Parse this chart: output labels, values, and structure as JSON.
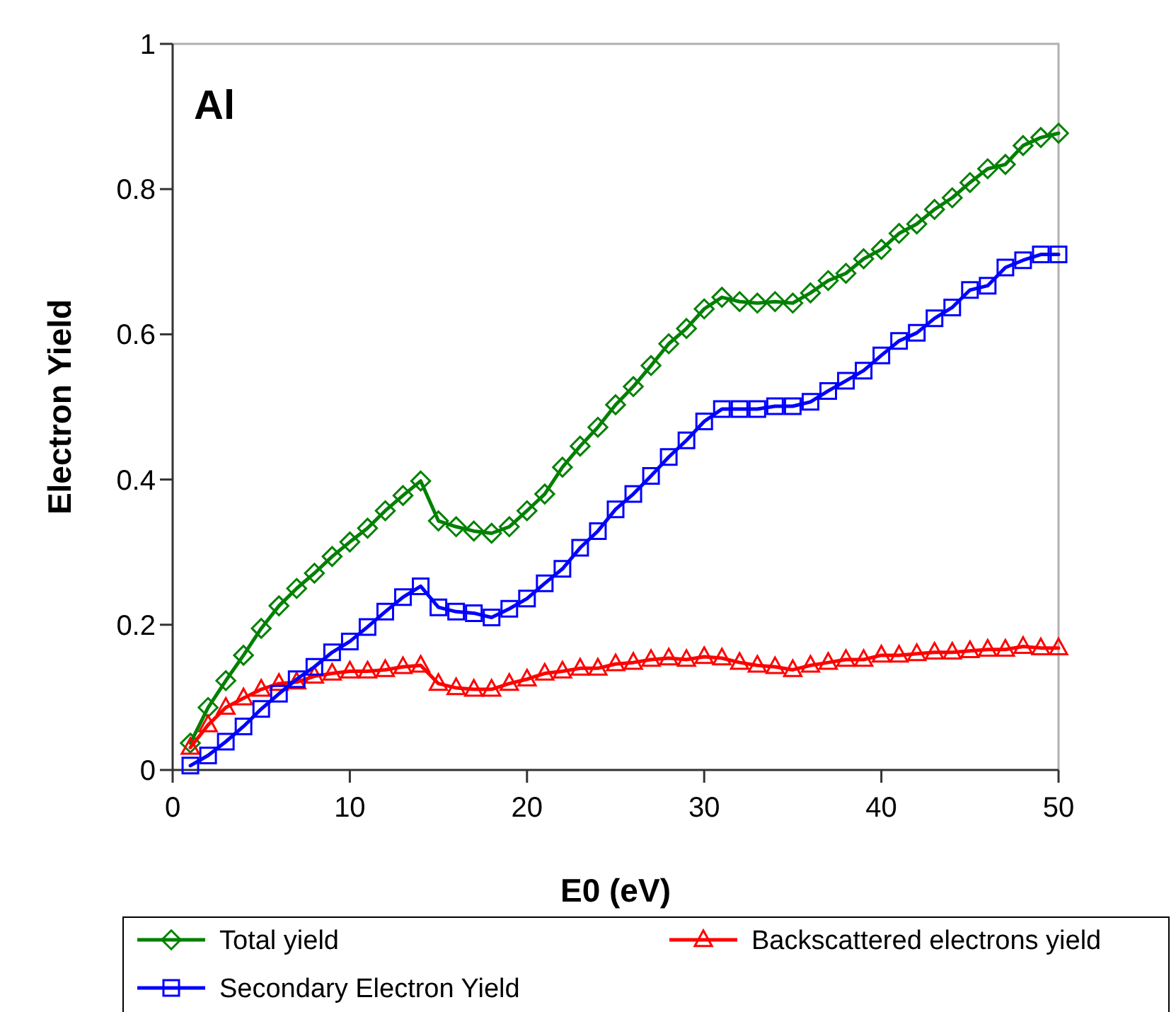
{
  "chart_data": {
    "type": "line",
    "xlabel": "E0 (eV)",
    "ylabel": "Electron Yield",
    "annotations": [
      "Al"
    ],
    "x": [
      1,
      2,
      3,
      4,
      5,
      6,
      7,
      8,
      9,
      10,
      11,
      12,
      13,
      14,
      15,
      16,
      17,
      18,
      19,
      20,
      21,
      22,
      23,
      24,
      25,
      26,
      27,
      28,
      29,
      30,
      31,
      32,
      33,
      34,
      35,
      36,
      37,
      38,
      39,
      40,
      41,
      42,
      43,
      44,
      45,
      46,
      47,
      48,
      49,
      50
    ],
    "xlim": [
      0,
      50
    ],
    "xticks": [
      0,
      10,
      20,
      30,
      40,
      50
    ],
    "ylim": [
      0,
      1
    ],
    "yticks": [
      0,
      0.2,
      0.4,
      0.6,
      0.8,
      1
    ],
    "grid": false,
    "legend": "bottom",
    "line_style": "solid",
    "series": [
      {
        "name": "Total yield",
        "color": "#008000",
        "marker": "diamond",
        "values": [
          0.037,
          0.086,
          0.123,
          0.158,
          0.195,
          0.226,
          0.25,
          0.271,
          0.294,
          0.314,
          0.333,
          0.357,
          0.378,
          0.398,
          0.343,
          0.335,
          0.329,
          0.326,
          0.335,
          0.357,
          0.38,
          0.417,
          0.446,
          0.472,
          0.503,
          0.528,
          0.557,
          0.587,
          0.608,
          0.635,
          0.651,
          0.645,
          0.643,
          0.645,
          0.643,
          0.657,
          0.674,
          0.684,
          0.704,
          0.717,
          0.739,
          0.752,
          0.772,
          0.788,
          0.809,
          0.828,
          0.834,
          0.86,
          0.871,
          0.877
        ]
      },
      {
        "name": "Backscattered electrons yield",
        "color": "#ff0000",
        "marker": "triangle",
        "values": [
          0.031,
          0.062,
          0.086,
          0.099,
          0.111,
          0.119,
          0.121,
          0.129,
          0.133,
          0.136,
          0.136,
          0.138,
          0.142,
          0.144,
          0.119,
          0.113,
          0.111,
          0.111,
          0.119,
          0.125,
          0.133,
          0.136,
          0.14,
          0.14,
          0.146,
          0.148,
          0.152,
          0.154,
          0.152,
          0.156,
          0.154,
          0.148,
          0.144,
          0.142,
          0.138,
          0.144,
          0.148,
          0.152,
          0.152,
          0.158,
          0.158,
          0.16,
          0.162,
          0.162,
          0.164,
          0.166,
          0.166,
          0.17,
          0.168,
          0.168
        ]
      },
      {
        "name": "Secondary Electron Yield",
        "color": "#0000ff",
        "marker": "square",
        "values": [
          0.006,
          0.02,
          0.039,
          0.06,
          0.084,
          0.105,
          0.125,
          0.142,
          0.162,
          0.177,
          0.197,
          0.218,
          0.238,
          0.253,
          0.224,
          0.218,
          0.216,
          0.21,
          0.222,
          0.236,
          0.257,
          0.277,
          0.306,
          0.329,
          0.359,
          0.38,
          0.405,
          0.431,
          0.454,
          0.48,
          0.497,
          0.497,
          0.497,
          0.501,
          0.501,
          0.507,
          0.522,
          0.536,
          0.55,
          0.571,
          0.591,
          0.602,
          0.622,
          0.637,
          0.661,
          0.667,
          0.692,
          0.702,
          0.71,
          0.71
        ]
      }
    ]
  }
}
